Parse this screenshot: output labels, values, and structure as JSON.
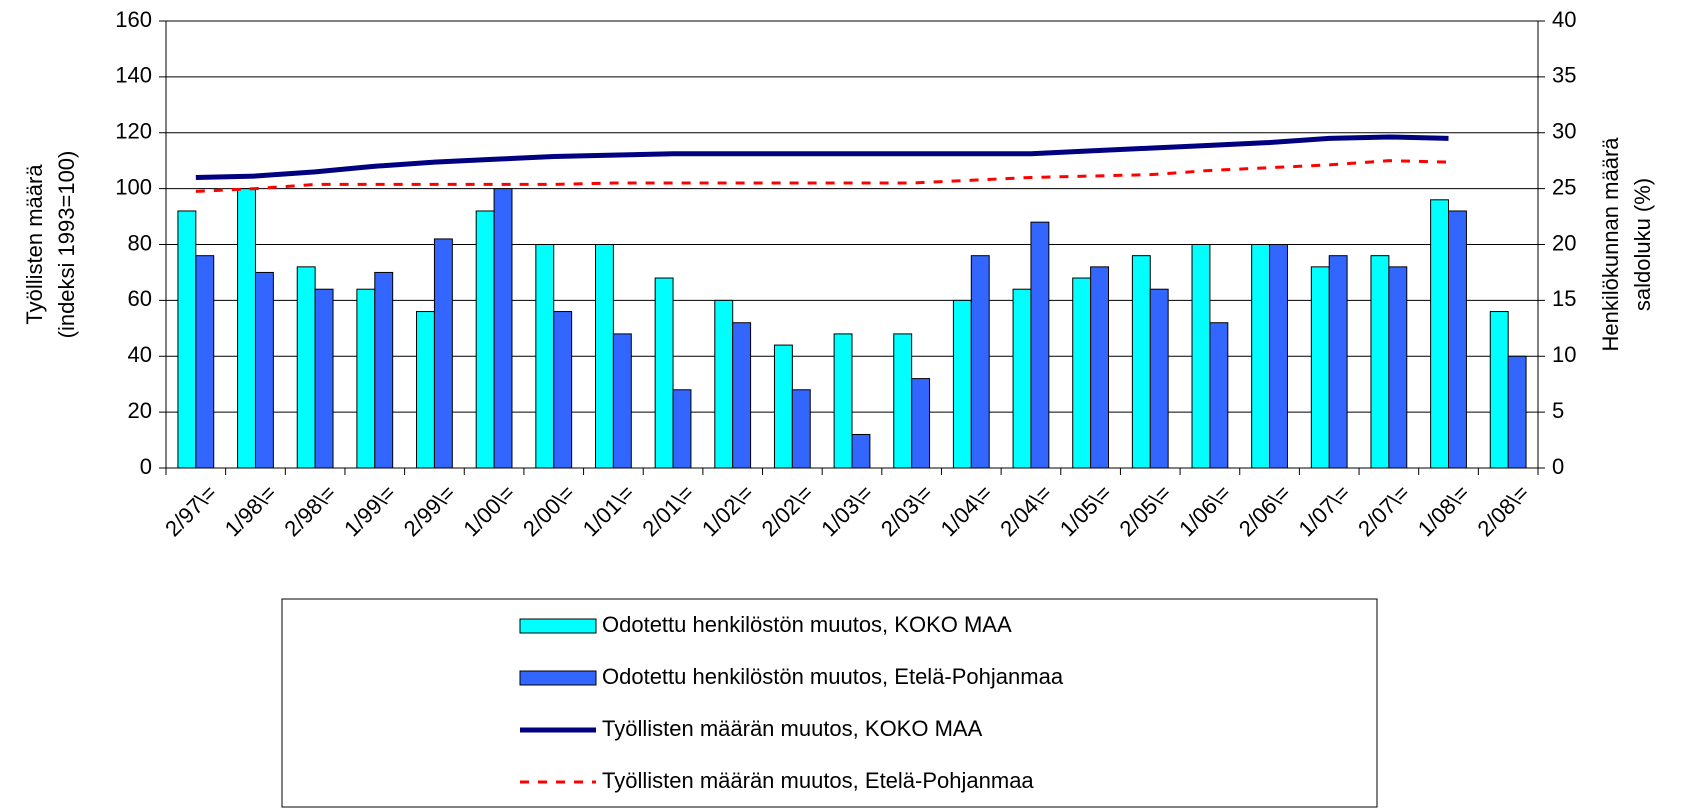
{
  "chart_data": {
    "type": "bar-line",
    "ylabel": [
      "Työllisten määrä",
      "(indeksi 1993=100)"
    ],
    "y2label": [
      "Henkilökunnan määrä",
      "saldoluku (%)"
    ],
    "categories": [
      "2/97\\=",
      "1/98\\=",
      "2/98\\=",
      "1/99\\=",
      "2/99\\=",
      "1/00\\=",
      "2/00\\=",
      "1/01\\=",
      "2/01\\=",
      "1/02\\=",
      "2/02\\=",
      "1/03\\=",
      "2/03\\=",
      "1/04\\=",
      "2/04\\=",
      "1/05\\=",
      "2/05\\=",
      "1/06\\=",
      "2/06\\=",
      "1/07\\=",
      "2/07\\=",
      "1/08\\=",
      "2/08\\="
    ],
    "series": [
      {
        "name": "Odotettu henkilöstön muutos, KOKO MAA",
        "type": "bar",
        "axis": "y2",
        "color": "#00ffff",
        "values": [
          23,
          25,
          18,
          16,
          14,
          23,
          20,
          20,
          17,
          15,
          11,
          12,
          12,
          15,
          16,
          17,
          19,
          20,
          20,
          18,
          19,
          24,
          14
        ]
      },
      {
        "name": "Odotettu henkilöstön muutos, Etelä-Pohjanmaa",
        "type": "bar",
        "axis": "y2",
        "color": "#3366ff",
        "values": [
          19,
          17.5,
          16,
          17.5,
          20.5,
          25,
          14,
          12,
          7,
          13,
          7,
          3,
          8,
          19,
          22,
          18,
          16,
          13,
          20,
          19,
          18,
          23,
          10
        ]
      },
      {
        "name": "Työllisten määrän muutos, KOKO MAA",
        "type": "line",
        "axis": "y",
        "color": "#000080",
        "dash": false,
        "values": [
          104,
          104.5,
          106,
          108,
          109.5,
          110.5,
          111.5,
          112,
          112.5,
          112.5,
          112.5,
          112.5,
          112.5,
          112.5,
          112.5,
          113.5,
          114.5,
          115.5,
          116.5,
          118,
          118.5,
          118,
          null
        ]
      },
      {
        "name": "Työllisten määrän muutos, Etelä-Pohjanmaa",
        "type": "line",
        "axis": "y",
        "color": "#ff0000",
        "dash": true,
        "values": [
          99,
          100,
          101.5,
          101.5,
          101.5,
          101.5,
          101.5,
          102,
          102,
          102,
          102,
          102,
          102,
          103,
          104,
          104.5,
          105,
          106.5,
          107.5,
          108.5,
          110,
          109.5,
          null
        ]
      }
    ],
    "ylim": [
      0,
      160
    ],
    "yticks": [
      0,
      20,
      40,
      60,
      80,
      100,
      120,
      140,
      160
    ],
    "y2lim": [
      0,
      40
    ],
    "y2ticks": [
      0,
      5,
      10,
      15,
      20,
      25,
      30,
      35,
      40
    ],
    "grid": true
  }
}
